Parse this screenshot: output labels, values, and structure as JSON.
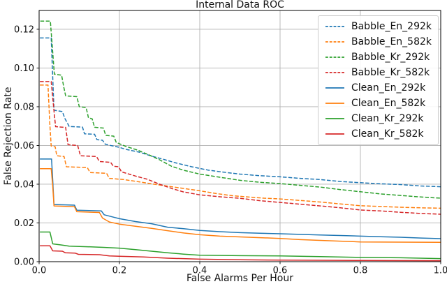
{
  "chart_data": {
    "type": "line",
    "title": "Internal Data ROC",
    "xlabel": "False Alarms Per Hour",
    "ylabel": "False Rejection Rate",
    "xlim": [
      0.0,
      1.0
    ],
    "ylim": [
      0.0,
      0.1297
    ],
    "grid": true,
    "grid_color": "#b0b0b0",
    "axis_color": "#000000",
    "legend_position": "upper right",
    "xticks": {
      "values": [
        0.0,
        0.2,
        0.4,
        0.6,
        0.8,
        1.0
      ],
      "labels": [
        "0.0",
        "0.2",
        "0.4",
        "0.6",
        "0.8",
        "1.0"
      ]
    },
    "yticks": {
      "values": [
        0.0,
        0.02,
        0.04,
        0.06,
        0.08,
        0.1,
        0.12
      ],
      "labels": [
        "0.00",
        "0.02",
        "0.04",
        "0.06",
        "0.08",
        "0.10",
        "0.12"
      ]
    },
    "series": [
      {
        "name": "Babble_En_292k",
        "color": "#1f77b4",
        "line_style": "dashed",
        "points": [
          [
            0.002,
            0.1155
          ],
          [
            0.03,
            0.1155
          ],
          [
            0.034,
            0.095
          ],
          [
            0.037,
            0.0782
          ],
          [
            0.058,
            0.0775
          ],
          [
            0.064,
            0.074
          ],
          [
            0.075,
            0.0698
          ],
          [
            0.108,
            0.0695
          ],
          [
            0.113,
            0.066
          ],
          [
            0.138,
            0.0658
          ],
          [
            0.144,
            0.063
          ],
          [
            0.158,
            0.0627
          ],
          [
            0.165,
            0.0606
          ],
          [
            0.2,
            0.059
          ],
          [
            0.216,
            0.058
          ],
          [
            0.25,
            0.0565
          ],
          [
            0.28,
            0.0545
          ],
          [
            0.31,
            0.0528
          ],
          [
            0.34,
            0.051
          ],
          [
            0.38,
            0.049
          ],
          [
            0.42,
            0.0473
          ],
          [
            0.46,
            0.0462
          ],
          [
            0.5,
            0.0452
          ],
          [
            0.55,
            0.0444
          ],
          [
            0.6,
            0.0438
          ],
          [
            0.65,
            0.043
          ],
          [
            0.7,
            0.0424
          ],
          [
            0.75,
            0.0414
          ],
          [
            0.8,
            0.0408
          ],
          [
            0.85,
            0.0402
          ],
          [
            0.9,
            0.0398
          ],
          [
            0.95,
            0.0391
          ],
          [
            1.0,
            0.0387
          ]
        ]
      },
      {
        "name": "Babble_En_582k",
        "color": "#ff7f0e",
        "line_style": "dashed",
        "points": [
          [
            0.002,
            0.0912
          ],
          [
            0.022,
            0.0912
          ],
          [
            0.027,
            0.07
          ],
          [
            0.03,
            0.0597
          ],
          [
            0.04,
            0.0593
          ],
          [
            0.044,
            0.0547
          ],
          [
            0.062,
            0.0543
          ],
          [
            0.068,
            0.049
          ],
          [
            0.12,
            0.0486
          ],
          [
            0.127,
            0.046
          ],
          [
            0.168,
            0.0456
          ],
          [
            0.175,
            0.043
          ],
          [
            0.21,
            0.0424
          ],
          [
            0.24,
            0.0415
          ],
          [
            0.28,
            0.0402
          ],
          [
            0.32,
            0.039
          ],
          [
            0.36,
            0.0378
          ],
          [
            0.4,
            0.0366
          ],
          [
            0.44,
            0.0352
          ],
          [
            0.48,
            0.0341
          ],
          [
            0.52,
            0.0334
          ],
          [
            0.56,
            0.0328
          ],
          [
            0.6,
            0.0324
          ],
          [
            0.65,
            0.0316
          ],
          [
            0.7,
            0.0308
          ],
          [
            0.75,
            0.0298
          ],
          [
            0.8,
            0.0289
          ],
          [
            0.85,
            0.0285
          ],
          [
            0.9,
            0.0281
          ],
          [
            0.95,
            0.0278
          ],
          [
            1.0,
            0.0276
          ]
        ]
      },
      {
        "name": "Babble_Kr_292k",
        "color": "#2ca02c",
        "line_style": "dashed",
        "points": [
          [
            0.003,
            0.1242
          ],
          [
            0.028,
            0.1242
          ],
          [
            0.034,
            0.108
          ],
          [
            0.038,
            0.0968
          ],
          [
            0.056,
            0.0963
          ],
          [
            0.061,
            0.0905
          ],
          [
            0.066,
            0.0856
          ],
          [
            0.094,
            0.0852
          ],
          [
            0.1,
            0.08
          ],
          [
            0.117,
            0.0796
          ],
          [
            0.123,
            0.0742
          ],
          [
            0.132,
            0.0738
          ],
          [
            0.138,
            0.0694
          ],
          [
            0.16,
            0.069
          ],
          [
            0.166,
            0.0652
          ],
          [
            0.186,
            0.0648
          ],
          [
            0.192,
            0.0616
          ],
          [
            0.215,
            0.0596
          ],
          [
            0.245,
            0.0576
          ],
          [
            0.275,
            0.055
          ],
          [
            0.3,
            0.0526
          ],
          [
            0.33,
            0.0492
          ],
          [
            0.36,
            0.0472
          ],
          [
            0.4,
            0.0452
          ],
          [
            0.45,
            0.0436
          ],
          [
            0.5,
            0.042
          ],
          [
            0.55,
            0.041
          ],
          [
            0.6,
            0.0403
          ],
          [
            0.65,
            0.0394
          ],
          [
            0.7,
            0.0385
          ],
          [
            0.75,
            0.0372
          ],
          [
            0.8,
            0.0361
          ],
          [
            0.85,
            0.035
          ],
          [
            0.9,
            0.0342
          ],
          [
            0.95,
            0.0334
          ],
          [
            1.0,
            0.0328
          ]
        ]
      },
      {
        "name": "Babble_Kr_582k",
        "color": "#d62728",
        "line_style": "dashed",
        "points": [
          [
            0.002,
            0.093
          ],
          [
            0.03,
            0.093
          ],
          [
            0.038,
            0.076
          ],
          [
            0.041,
            0.0697
          ],
          [
            0.066,
            0.0693
          ],
          [
            0.072,
            0.0604
          ],
          [
            0.096,
            0.06
          ],
          [
            0.103,
            0.0547
          ],
          [
            0.143,
            0.0543
          ],
          [
            0.15,
            0.0517
          ],
          [
            0.178,
            0.0513
          ],
          [
            0.185,
            0.0493
          ],
          [
            0.198,
            0.049
          ],
          [
            0.205,
            0.0464
          ],
          [
            0.24,
            0.0442
          ],
          [
            0.27,
            0.0425
          ],
          [
            0.3,
            0.04
          ],
          [
            0.33,
            0.0378
          ],
          [
            0.36,
            0.036
          ],
          [
            0.4,
            0.0345
          ],
          [
            0.45,
            0.0335
          ],
          [
            0.5,
            0.0327
          ],
          [
            0.55,
            0.0315
          ],
          [
            0.6,
            0.0306
          ],
          [
            0.65,
            0.0297
          ],
          [
            0.7,
            0.0288
          ],
          [
            0.75,
            0.0278
          ],
          [
            0.8,
            0.0267
          ],
          [
            0.85,
            0.0262
          ],
          [
            0.9,
            0.0255
          ],
          [
            0.95,
            0.0249
          ],
          [
            1.0,
            0.0245
          ]
        ]
      },
      {
        "name": "Clean_En_292k",
        "color": "#1f77b4",
        "line_style": "solid",
        "points": [
          [
            0.002,
            0.053
          ],
          [
            0.031,
            0.053
          ],
          [
            0.034,
            0.042
          ],
          [
            0.037,
            0.0295
          ],
          [
            0.088,
            0.0292
          ],
          [
            0.094,
            0.0266
          ],
          [
            0.155,
            0.0262
          ],
          [
            0.162,
            0.0242
          ],
          [
            0.185,
            0.023
          ],
          [
            0.2,
            0.0222
          ],
          [
            0.24,
            0.0207
          ],
          [
            0.28,
            0.0196
          ],
          [
            0.32,
            0.0178
          ],
          [
            0.36,
            0.017
          ],
          [
            0.4,
            0.0161
          ],
          [
            0.45,
            0.0155
          ],
          [
            0.5,
            0.015
          ],
          [
            0.55,
            0.0147
          ],
          [
            0.6,
            0.0144
          ],
          [
            0.65,
            0.0141
          ],
          [
            0.7,
            0.0138
          ],
          [
            0.75,
            0.0135
          ],
          [
            0.8,
            0.0132
          ],
          [
            0.85,
            0.0129
          ],
          [
            0.9,
            0.0126
          ],
          [
            0.95,
            0.0122
          ],
          [
            1.0,
            0.0119
          ]
        ]
      },
      {
        "name": "Clean_En_582k",
        "color": "#ff7f0e",
        "line_style": "solid",
        "points": [
          [
            0.002,
            0.048
          ],
          [
            0.03,
            0.048
          ],
          [
            0.034,
            0.039
          ],
          [
            0.037,
            0.0288
          ],
          [
            0.088,
            0.0284
          ],
          [
            0.094,
            0.0258
          ],
          [
            0.15,
            0.0254
          ],
          [
            0.158,
            0.0225
          ],
          [
            0.175,
            0.0205
          ],
          [
            0.2,
            0.0194
          ],
          [
            0.24,
            0.0183
          ],
          [
            0.28,
            0.0172
          ],
          [
            0.32,
            0.016
          ],
          [
            0.36,
            0.0148
          ],
          [
            0.4,
            0.0139
          ],
          [
            0.45,
            0.0132
          ],
          [
            0.5,
            0.0128
          ],
          [
            0.55,
            0.0124
          ],
          [
            0.6,
            0.012
          ],
          [
            0.65,
            0.0114
          ],
          [
            0.7,
            0.011
          ],
          [
            0.75,
            0.0106
          ],
          [
            0.8,
            0.0102
          ],
          [
            0.9,
            0.0101
          ],
          [
            1.0,
            0.01
          ]
        ]
      },
      {
        "name": "Clean_Kr_292k",
        "color": "#2ca02c",
        "line_style": "solid",
        "points": [
          [
            0.002,
            0.0153
          ],
          [
            0.027,
            0.0153
          ],
          [
            0.034,
            0.0092
          ],
          [
            0.056,
            0.0086
          ],
          [
            0.075,
            0.008
          ],
          [
            0.12,
            0.0077
          ],
          [
            0.16,
            0.0074
          ],
          [
            0.2,
            0.007
          ],
          [
            0.24,
            0.0062
          ],
          [
            0.28,
            0.0054
          ],
          [
            0.32,
            0.0046
          ],
          [
            0.36,
            0.0039
          ],
          [
            0.4,
            0.0033
          ],
          [
            0.5,
            0.0031
          ],
          [
            0.6,
            0.003
          ],
          [
            0.7,
            0.0026
          ],
          [
            0.8,
            0.0022
          ],
          [
            0.9,
            0.002
          ],
          [
            1.0,
            0.0016
          ]
        ]
      },
      {
        "name": "Clean_Kr_582k",
        "color": "#d62728",
        "line_style": "solid",
        "points": [
          [
            0.002,
            0.0082
          ],
          [
            0.027,
            0.0082
          ],
          [
            0.034,
            0.0056
          ],
          [
            0.058,
            0.0054
          ],
          [
            0.065,
            0.0046
          ],
          [
            0.09,
            0.0044
          ],
          [
            0.098,
            0.0038
          ],
          [
            0.15,
            0.0036
          ],
          [
            0.175,
            0.003
          ],
          [
            0.2,
            0.0028
          ],
          [
            0.26,
            0.0024
          ],
          [
            0.32,
            0.0018
          ],
          [
            0.4,
            0.0013
          ],
          [
            0.5,
            0.001
          ],
          [
            0.6,
            0.0008
          ],
          [
            0.8,
            0.0006
          ],
          [
            1.0,
            0.0005
          ]
        ]
      }
    ]
  }
}
